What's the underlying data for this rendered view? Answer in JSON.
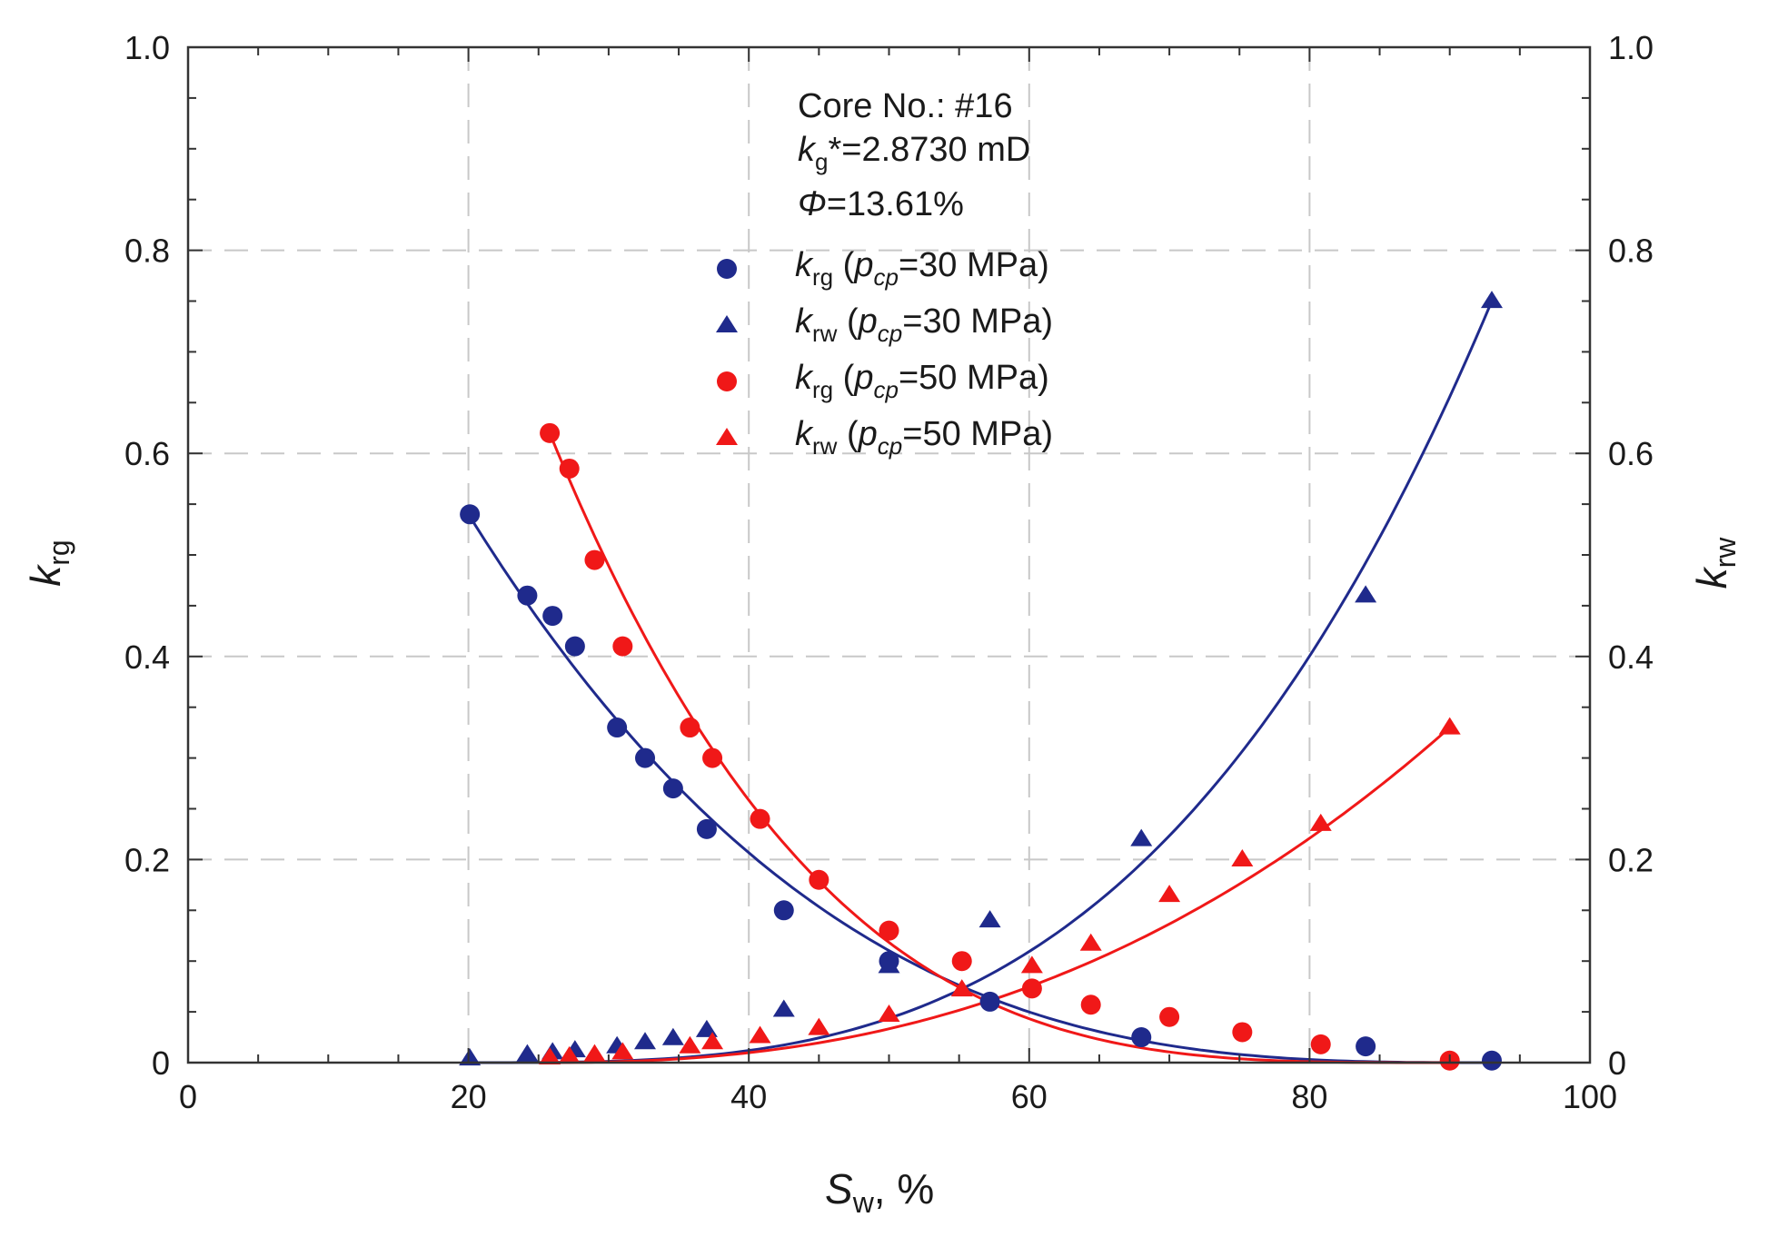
{
  "chart_data": {
    "type": "scatter",
    "colors": {
      "blue": "#1f2a8c",
      "red": "#f01818",
      "grid": "#c8c8c8",
      "axis": "#333333"
    },
    "x_axis": {
      "label_main": "S",
      "label_sub": "w",
      "label_suffix": ", %",
      "range": [
        0,
        100
      ],
      "ticks": [
        0,
        20,
        40,
        60,
        80,
        100
      ],
      "tick_labels": [
        "0",
        "20",
        "40",
        "60",
        "80",
        "100"
      ]
    },
    "y_axis_left": {
      "label_main": "k",
      "label_sub": "rg",
      "range": [
        0,
        1
      ],
      "ticks": [
        0,
        0.2,
        0.4,
        0.6,
        0.8,
        1.0
      ],
      "tick_labels": [
        "0",
        "0.2",
        "0.4",
        "0.6",
        "0.8",
        "1.0"
      ]
    },
    "y_axis_right": {
      "label_main": "k",
      "label_sub": "rw",
      "range": [
        0,
        1
      ],
      "ticks": [
        0,
        0.2,
        0.4,
        0.6,
        0.8,
        1.0
      ],
      "tick_labels": [
        "0",
        "0.2",
        "0.4",
        "0.6",
        "0.8",
        "1.0"
      ]
    },
    "grid": true,
    "annotation": {
      "core": "Core No.: #16",
      "kg_main": "k",
      "kg_sub": "g",
      "kg_value": "*=2.8730 mD",
      "phi_symbol": "Φ",
      "phi_value": "=13.61%"
    },
    "legend_position": "top-center",
    "series": [
      {
        "name": "krg_30",
        "legend_main": "k",
        "legend_sub": "rg",
        "legend_open": " (",
        "legend_p": "p",
        "legend_psub": "cp",
        "legend_rest": "=30 MPa)",
        "marker": "circle",
        "color": "#1f2a8c",
        "x": [
          20.1,
          24.2,
          26.0,
          27.6,
          30.6,
          32.6,
          34.6,
          37.0,
          42.5,
          50.0,
          57.2,
          68.0,
          84.0,
          93.0
        ],
        "y": [
          0.54,
          0.46,
          0.44,
          0.41,
          0.33,
          0.3,
          0.27,
          0.23,
          0.15,
          0.1,
          0.06,
          0.025,
          0.016,
          0.002
        ],
        "fit": {
          "x_start": 20.0,
          "x_end": 93.0,
          "y_start": 0.54,
          "y_end": 0.0,
          "exponent": 3.0
        }
      },
      {
        "name": "krw_30",
        "legend_main": "k",
        "legend_sub": "rw",
        "legend_open": " (",
        "legend_p": "p",
        "legend_psub": "cp",
        "legend_rest": "=30 MPa)",
        "marker": "triangle",
        "color": "#1f2a8c",
        "x": [
          20.1,
          24.2,
          26.0,
          27.6,
          30.6,
          32.6,
          34.6,
          37.0,
          42.5,
          50.0,
          57.2,
          68.0,
          84.0,
          93.0
        ],
        "y": [
          0.004,
          0.008,
          0.01,
          0.012,
          0.016,
          0.02,
          0.024,
          0.032,
          0.052,
          0.095,
          0.14,
          0.22,
          0.46,
          0.75
        ],
        "fit": {
          "x_start": 20.0,
          "x_end": 93.0,
          "y_start": 0.0,
          "y_end": 0.75,
          "exponent": 3.2
        }
      },
      {
        "name": "krg_50",
        "legend_main": "k",
        "legend_sub": "rg",
        "legend_open": " (",
        "legend_p": "p",
        "legend_psub": "cp",
        "legend_rest": "=50 MPa)",
        "marker": "circle",
        "color": "#f01818",
        "x": [
          25.8,
          27.2,
          29.0,
          31.0,
          35.8,
          37.4,
          40.8,
          45.0,
          50.0,
          55.2,
          60.2,
          64.4,
          70.0,
          75.2,
          80.8,
          90.0
        ],
        "y": [
          0.62,
          0.585,
          0.495,
          0.41,
          0.33,
          0.3,
          0.24,
          0.18,
          0.13,
          0.1,
          0.073,
          0.057,
          0.045,
          0.03,
          0.018,
          0.002
        ],
        "fit": {
          "x_start": 25.8,
          "x_end": 90.0,
          "y_start": 0.62,
          "y_end": 0.0,
          "exponent": 3.5
        }
      },
      {
        "name": "krw_50",
        "legend_main": "k",
        "legend_sub": "rw",
        "legend_open": " (",
        "legend_p": "p",
        "legend_psub": "cp",
        "legend_rest": "=50 MPa)",
        "marker": "triangle",
        "color": "#f01818",
        "x": [
          25.8,
          27.2,
          29.0,
          31.0,
          35.8,
          37.4,
          40.8,
          45.0,
          50.0,
          55.2,
          60.2,
          64.4,
          70.0,
          75.2,
          80.8,
          90.0
        ],
        "y": [
          0.005,
          0.006,
          0.008,
          0.01,
          0.016,
          0.02,
          0.026,
          0.034,
          0.047,
          0.072,
          0.095,
          0.117,
          0.165,
          0.2,
          0.235,
          0.33
        ],
        "fit": {
          "x_start": 25.0,
          "x_end": 90.0,
          "y_start": 0.0,
          "y_end": 0.33,
          "exponent": 2.4
        }
      }
    ]
  }
}
